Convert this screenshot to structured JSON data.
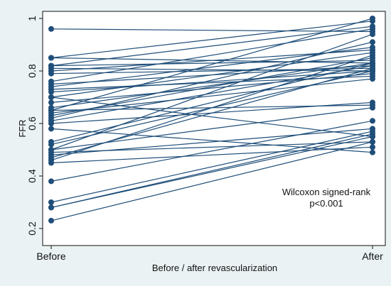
{
  "chart_data": {
    "type": "line",
    "categories": [
      "Before",
      "After"
    ],
    "xlabel": "Before / after revascularization",
    "ylabel": "FFR",
    "ylim": [
      0.2,
      1.0
    ],
    "yticks": [
      "0.2",
      "0.4",
      "0.6",
      "0.8",
      "1"
    ],
    "grid": false,
    "line_color": "#1f4e79",
    "marker_color": "#1f4e79",
    "plot_background": "#ffffff",
    "page_background": "#eaf2f3",
    "annotation": {
      "line1": "Wilcoxon signed-rank",
      "line2": "p<0.001"
    },
    "pairs": [
      [
        0.96,
        0.95
      ],
      [
        0.85,
        0.99
      ],
      [
        0.85,
        0.83
      ],
      [
        0.82,
        0.97
      ],
      [
        0.82,
        0.84
      ],
      [
        0.81,
        0.8
      ],
      [
        0.8,
        0.88
      ],
      [
        0.79,
        0.81
      ],
      [
        0.76,
        0.96
      ],
      [
        0.75,
        0.82
      ],
      [
        0.74,
        0.89
      ],
      [
        0.73,
        0.78
      ],
      [
        0.72,
        0.8
      ],
      [
        0.7,
        0.87
      ],
      [
        0.7,
        0.55
      ],
      [
        0.68,
        0.79
      ],
      [
        0.66,
        0.83
      ],
      [
        0.65,
        1.0
      ],
      [
        0.65,
        0.67
      ],
      [
        0.64,
        0.77
      ],
      [
        0.63,
        0.85
      ],
      [
        0.62,
        0.91
      ],
      [
        0.61,
        0.82
      ],
      [
        0.6,
        0.68
      ],
      [
        0.58,
        0.49
      ],
      [
        0.53,
        0.83
      ],
      [
        0.52,
        0.8
      ],
      [
        0.5,
        0.66
      ],
      [
        0.5,
        0.94
      ],
      [
        0.49,
        0.53
      ],
      [
        0.48,
        0.58
      ],
      [
        0.47,
        0.81
      ],
      [
        0.46,
        0.86
      ],
      [
        0.45,
        0.51
      ],
      [
        0.38,
        0.61
      ],
      [
        0.3,
        0.57
      ],
      [
        0.28,
        0.56
      ],
      [
        0.28,
        0.55
      ],
      [
        0.23,
        0.53
      ]
    ]
  }
}
